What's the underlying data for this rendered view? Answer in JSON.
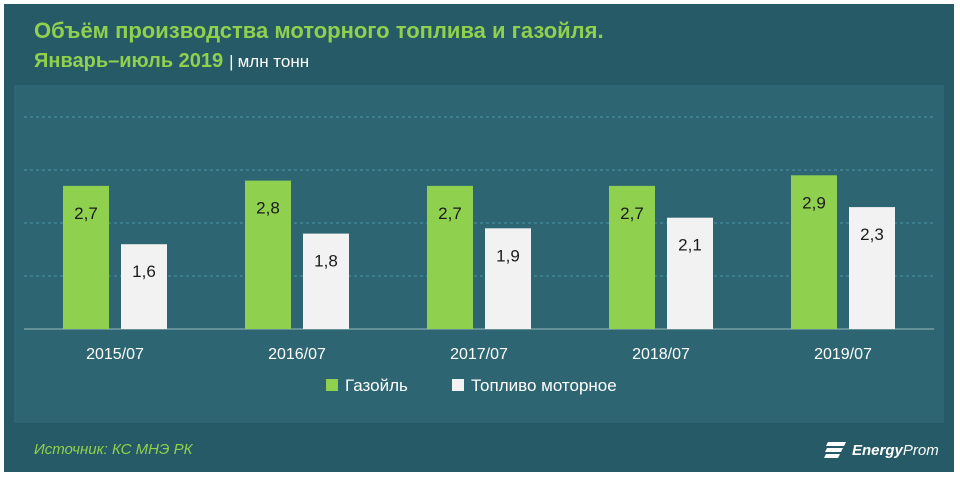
{
  "header": {
    "title": "Объём производства моторного топлива и газойля.",
    "subtitle": "Январь–июль 2019",
    "separator": "|",
    "unit": "млн тонн"
  },
  "footer": {
    "source": "Источник: КС МНЭ РК",
    "logo_text_bold": "Energy",
    "logo_text": "Prom"
  },
  "colors": {
    "background": "#265a66",
    "panel": "#2d6672",
    "gasoil": "#8fd14f",
    "motor_fuel": "#f2f2f2",
    "title": "#8fd14f",
    "text": "#ffffff"
  },
  "chart_data": {
    "type": "bar",
    "categories": [
      "2015/07",
      "2016/07",
      "2017/07",
      "2018/07",
      "2019/07"
    ],
    "series": [
      {
        "name": "Газойль",
        "values": [
          2.7,
          2.8,
          2.7,
          2.7,
          2.9
        ],
        "labels": [
          "2,7",
          "2,8",
          "2,7",
          "2,7",
          "2,9"
        ],
        "color": "#8fd14f"
      },
      {
        "name": "Топливо моторное",
        "values": [
          1.6,
          1.8,
          1.9,
          2.1,
          2.3
        ],
        "labels": [
          "1,6",
          "1,8",
          "1,9",
          "2,1",
          "2,3"
        ],
        "color": "#f2f2f2"
      }
    ],
    "ylim": [
      0,
      4
    ],
    "grid": true,
    "legend": "bottom-center"
  }
}
